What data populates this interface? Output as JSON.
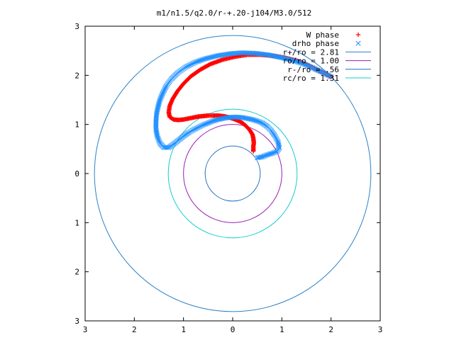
{
  "chart_data": {
    "type": "scatter",
    "title": "m1/n1.5/q2.0/r-+.20-j104/M3.0/512",
    "xlim": [
      -3,
      3
    ],
    "ylim": [
      -3,
      3
    ],
    "x_ticks": [
      -3,
      -2,
      -1,
      0,
      1,
      2,
      3
    ],
    "y_ticks": [
      -3,
      -2,
      -1,
      0,
      1,
      2,
      3
    ],
    "x_tick_labels": [
      "3",
      "2",
      "1",
      "0",
      "1",
      "2",
      "3"
    ],
    "y_tick_labels": [
      "3",
      "2",
      "1",
      "0",
      "1",
      "2",
      "3"
    ],
    "legend_position": "top-right",
    "series": [
      {
        "name": "W phase",
        "marker": "+",
        "color": "#ff0000",
        "points": [
          [
            0.42,
            0.45
          ],
          [
            0.42,
            0.55
          ],
          [
            0.43,
            0.62
          ],
          [
            0.42,
            0.72
          ],
          [
            0.4,
            0.8
          ],
          [
            0.35,
            0.88
          ],
          [
            0.28,
            0.96
          ],
          [
            0.2,
            1.03
          ],
          [
            0.1,
            1.08
          ],
          [
            0.0,
            1.12
          ],
          [
            -0.1,
            1.15
          ],
          [
            -0.2,
            1.17
          ],
          [
            -0.3,
            1.18
          ],
          [
            -0.4,
            1.18
          ],
          [
            -0.5,
            1.18
          ],
          [
            -0.6,
            1.17
          ],
          [
            -0.7,
            1.16
          ],
          [
            -0.8,
            1.14
          ],
          [
            -0.9,
            1.12
          ],
          [
            -1.0,
            1.1
          ],
          [
            -1.1,
            1.09
          ],
          [
            -1.2,
            1.1
          ],
          [
            -1.28,
            1.15
          ],
          [
            -1.3,
            1.25
          ],
          [
            -1.28,
            1.38
          ],
          [
            -1.22,
            1.52
          ],
          [
            -1.12,
            1.68
          ],
          [
            -1.0,
            1.83
          ],
          [
            -0.85,
            1.98
          ],
          [
            -0.65,
            2.12
          ],
          [
            -0.45,
            2.23
          ],
          [
            -0.2,
            2.32
          ],
          [
            0.05,
            2.38
          ],
          [
            0.3,
            2.42
          ],
          [
            0.55,
            2.42
          ],
          [
            0.8,
            2.4
          ],
          [
            1.05,
            2.36
          ],
          [
            1.3,
            2.3
          ],
          [
            1.5,
            2.22
          ],
          [
            1.7,
            2.12
          ],
          [
            1.85,
            2.05
          ],
          [
            2.0,
            1.97
          ]
        ]
      },
      {
        "name": "drho phase",
        "marker": "x",
        "color": "#1e90ff",
        "points": [
          [
            0.5,
            0.32
          ],
          [
            0.6,
            0.34
          ],
          [
            0.7,
            0.38
          ],
          [
            0.8,
            0.41
          ],
          [
            0.9,
            0.45
          ],
          [
            0.95,
            0.52
          ],
          [
            0.92,
            0.65
          ],
          [
            0.85,
            0.78
          ],
          [
            0.78,
            0.88
          ],
          [
            0.7,
            0.96
          ],
          [
            0.6,
            1.03
          ],
          [
            0.5,
            1.07
          ],
          [
            0.4,
            1.1
          ],
          [
            0.3,
            1.12
          ],
          [
            0.2,
            1.14
          ],
          [
            0.1,
            1.15
          ],
          [
            0.0,
            1.15
          ],
          [
            -0.1,
            1.14
          ],
          [
            -0.2,
            1.12
          ],
          [
            -0.3,
            1.1
          ],
          [
            -0.4,
            1.07
          ],
          [
            -0.5,
            1.03
          ],
          [
            -0.6,
            0.99
          ],
          [
            -0.7,
            0.94
          ],
          [
            -0.8,
            0.89
          ],
          [
            -0.9,
            0.83
          ],
          [
            -1.0,
            0.76
          ],
          [
            -1.1,
            0.68
          ],
          [
            -1.2,
            0.6
          ],
          [
            -1.3,
            0.53
          ],
          [
            -1.4,
            0.53
          ],
          [
            -1.48,
            0.62
          ],
          [
            -1.53,
            0.75
          ],
          [
            -1.56,
            0.9
          ],
          [
            -1.56,
            1.05
          ],
          [
            -1.55,
            1.2
          ],
          [
            -1.52,
            1.35
          ],
          [
            -1.48,
            1.5
          ],
          [
            -1.42,
            1.64
          ],
          [
            -1.35,
            1.78
          ],
          [
            -1.25,
            1.92
          ],
          [
            -1.12,
            2.05
          ],
          [
            -0.95,
            2.17
          ],
          [
            -0.75,
            2.27
          ],
          [
            -0.55,
            2.34
          ],
          [
            -0.3,
            2.4
          ],
          [
            -0.05,
            2.44
          ],
          [
            0.2,
            2.46
          ],
          [
            0.45,
            2.45
          ],
          [
            0.7,
            2.42
          ],
          [
            0.95,
            2.37
          ],
          [
            1.2,
            2.31
          ],
          [
            1.45,
            2.23
          ],
          [
            1.65,
            2.14
          ],
          [
            1.85,
            2.05
          ],
          [
            2.0,
            1.97
          ]
        ]
      }
    ],
    "circles": [
      {
        "name": "r+/ro = 2.81",
        "r": 2.81,
        "color": "#2a82c8"
      },
      {
        "name": "ro/ro = 1.00",
        "r": 1.0,
        "color": "#9a1fb4"
      },
      {
        "name": "r-/ro = .56",
        "r": 0.56,
        "color": "#1f6fc2"
      },
      {
        "name": "rc/ro = 1.31",
        "r": 1.31,
        "color": "#16cccc"
      }
    ]
  }
}
